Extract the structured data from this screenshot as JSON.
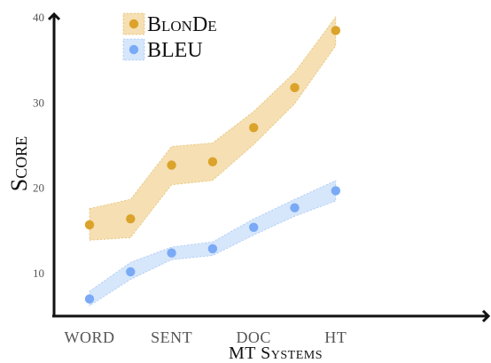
{
  "chart_data": {
    "type": "line",
    "xlabel": "MT Systems",
    "ylabel": "Score",
    "categories": [
      "WORD",
      "",
      "SENT",
      "",
      "DOC",
      "",
      "HT"
    ],
    "ylim": [
      5,
      40
    ],
    "yticks": [
      10,
      20,
      30,
      40
    ],
    "grid": false,
    "legend_position": "top-left",
    "series": [
      {
        "name": "BlonDe",
        "color": "#dba32a",
        "band_color": "#f5dfb3",
        "values": [
          15.6,
          16.3,
          22.6,
          23.0,
          27.0,
          31.7,
          38.4
        ],
        "lower": [
          13.8,
          14.1,
          20.3,
          20.8,
          25.0,
          29.8,
          36.6
        ],
        "upper": [
          17.5,
          18.6,
          24.8,
          25.2,
          28.9,
          33.5,
          40.0
        ]
      },
      {
        "name": "BLEU",
        "color": "#7aaaf6",
        "band_color": "#d6e6fb",
        "values": [
          6.9,
          10.1,
          12.3,
          12.8,
          15.3,
          17.6,
          19.6
        ],
        "lower": [
          6.1,
          9.2,
          11.5,
          12.0,
          14.4,
          16.6,
          18.4
        ],
        "upper": [
          7.8,
          11.2,
          13.0,
          13.6,
          16.3,
          18.6,
          20.8
        ]
      }
    ]
  }
}
